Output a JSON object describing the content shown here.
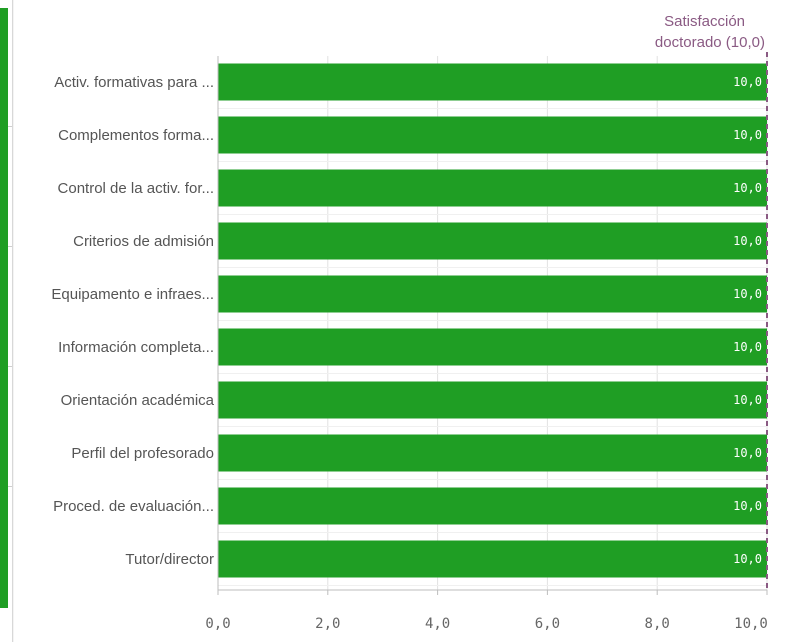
{
  "chart_data": {
    "type": "bar",
    "orientation": "horizontal",
    "categories": [
      "Activ. formativas para ...",
      "Complementos forma...",
      "Control de la activ. for...",
      "Criterios de admisión",
      "Equipamento e infraes...",
      "Información completa...",
      "Orientación académica",
      "Perfil del profesorado",
      "Proced. de evaluación...",
      "Tutor/director"
    ],
    "values": [
      10.0,
      10.0,
      10.0,
      10.0,
      10.0,
      10.0,
      10.0,
      10.0,
      10.0,
      10.0
    ],
    "value_labels": [
      "10,0",
      "10,0",
      "10,0",
      "10,0",
      "10,0",
      "10,0",
      "10,0",
      "10,0",
      "10,0",
      "10,0"
    ],
    "xlim": [
      0,
      10
    ],
    "x_ticks": [
      0,
      2,
      4,
      6,
      8,
      10
    ],
    "x_tick_labels": [
      "0,0",
      "2,0",
      "4,0",
      "6,0",
      "8,0",
      "10,0"
    ],
    "grid": true,
    "reference_line": {
      "value": 10.0,
      "label_line1": "Satisfacción",
      "label_line2": "doctorado (10,0)",
      "style": "dashed"
    },
    "colors": {
      "bar": "#1f9e24",
      "reference": "#8a5a83",
      "grid": "#e2e2e2",
      "axis": "#bdbdbd"
    }
  }
}
